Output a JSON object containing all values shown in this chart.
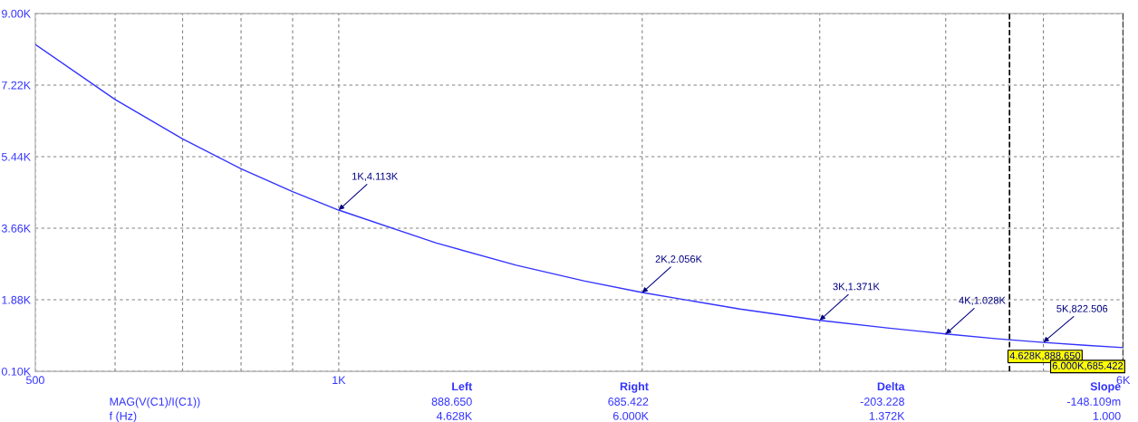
{
  "chart_data": {
    "type": "line",
    "x": [
      500,
      600,
      700,
      800,
      900,
      1000,
      1250,
      1500,
      1750,
      2000,
      2500,
      3000,
      3500,
      4000,
      4500,
      5000,
      5500,
      6000
    ],
    "series": [
      {
        "name": "MAG(V(C1)/I(C1))",
        "color": "#3333ff",
        "values": [
          8230,
          6860,
          5880,
          5140,
          4570,
          4110,
          3290,
          2740,
          2350,
          2060,
          1650,
          1370,
          1180,
          1030,
          910,
          820,
          750,
          690
        ]
      }
    ],
    "log": "x",
    "xlim": [
      500,
      6000
    ],
    "xticks": [
      500,
      {
        "value": 600,
        "label": null
      },
      {
        "value": 700,
        "label": null
      },
      {
        "value": 800,
        "label": null
      },
      {
        "value": 900,
        "label": null
      },
      {
        "value": 1000,
        "label": "1K"
      },
      {
        "value": 2000,
        "label": null
      },
      {
        "value": 3000,
        "label": null
      },
      {
        "value": 4000,
        "label": null
      },
      {
        "value": 5000,
        "label": null
      },
      {
        "value": 6000,
        "label": "6K"
      }
    ],
    "ylim": [
      100,
      9000
    ],
    "yticks": [
      {
        "value": 100,
        "label": "0.10K"
      },
      {
        "value": 1880,
        "label": "1.88K"
      },
      {
        "value": 3660,
        "label": "3.66K"
      },
      {
        "value": 5440,
        "label": "5.44K"
      },
      {
        "value": 7220,
        "label": "7.22K"
      },
      {
        "value": 9000,
        "label": "9.00K"
      }
    ],
    "grid": true,
    "ref_lines": [
      {
        "axis": "x",
        "value": 4628,
        "label": "4.628K,888.650",
        "color": "#000000",
        "line_style": "dashed"
      },
      {
        "axis": "x",
        "value": 6000,
        "label": "6.000K,685.422",
        "color": "#000000",
        "line_style": "dashed"
      }
    ],
    "annotations": [
      {
        "text": "1K,4.113K",
        "x": 1000,
        "y": 4113
      },
      {
        "text": "2K,2.056K",
        "x": 2000,
        "y": 2056
      },
      {
        "text": "3K,1.371K",
        "x": 3000,
        "y": 1371
      },
      {
        "text": "4K,1.028K",
        "x": 4000,
        "y": 1028
      },
      {
        "text": "5K,822.506",
        "x": 5000,
        "y": 822.506
      },
      "Left",
      "Right",
      "Delta",
      "Slope",
      "888.650",
      "685.422",
      "-203.228",
      "-148.109m",
      "f (Hz)",
      "4.628K",
      "6.000K",
      "1.372K",
      "1.000"
    ]
  }
}
